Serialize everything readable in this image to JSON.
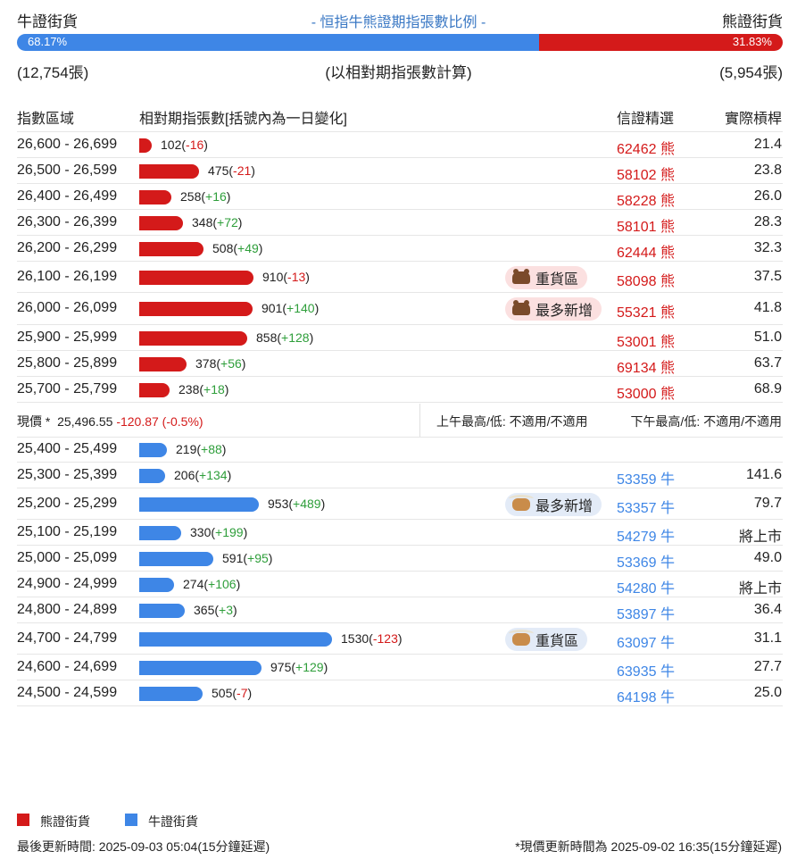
{
  "header": {
    "bull_label": "牛證街貨",
    "bear_label": "熊證街貨",
    "title": "- 恒指牛熊證期指張數比例 -",
    "bull_pct": "68.17%",
    "bear_pct": "31.83%",
    "bull_pct_value": 68.17,
    "bear_pct_value": 31.83,
    "bull_count": "(12,754張)",
    "bear_count": "(5,954張)",
    "basis": "(以相對期指張數計算)"
  },
  "columns": {
    "range": "指數區域",
    "contracts": "相對期指張數[括號內為一日變化]",
    "warrant": "信證精選",
    "leverage": "實際槓桿"
  },
  "colors": {
    "bear": "#d41a1a",
    "bull": "#3e86e6",
    "positive": "#2e9e3a"
  },
  "chart_data": {
    "type": "bar",
    "bear_rows": [
      {
        "range": "26,600 - 26,699",
        "value": 102,
        "value_text": "102",
        "change": "-16",
        "warrant": "62462 熊",
        "leverage": "21.4",
        "badge": ""
      },
      {
        "range": "26,500 - 26,599",
        "value": 475,
        "value_text": "475",
        "change": "-21",
        "warrant": "58102 熊",
        "leverage": "23.8",
        "badge": ""
      },
      {
        "range": "26,400 - 26,499",
        "value": 258,
        "value_text": "258",
        "change": "+16",
        "warrant": "58228 熊",
        "leverage": "26.0",
        "badge": ""
      },
      {
        "range": "26,300 - 26,399",
        "value": 348,
        "value_text": "348",
        "change": "+72",
        "warrant": "58101 熊",
        "leverage": "28.3",
        "badge": ""
      },
      {
        "range": "26,200 - 26,299",
        "value": 508,
        "value_text": "508",
        "change": "+49",
        "warrant": "62444 熊",
        "leverage": "32.3",
        "badge": ""
      },
      {
        "range": "26,100 - 26,199",
        "value": 910,
        "value_text": "910",
        "change": "-13",
        "warrant": "58098 熊",
        "leverage": "37.5",
        "badge": "重貨區"
      },
      {
        "range": "26,000 - 26,099",
        "value": 901,
        "value_text": "901",
        "change": "+140",
        "warrant": "55321 熊",
        "leverage": "41.8",
        "badge": "最多新增"
      },
      {
        "range": "25,900 - 25,999",
        "value": 858,
        "value_text": "858",
        "change": "+128",
        "warrant": "53001 熊",
        "leverage": "51.0",
        "badge": ""
      },
      {
        "range": "25,800 - 25,899",
        "value": 378,
        "value_text": "378",
        "change": "+56",
        "warrant": "69134 熊",
        "leverage": "63.7",
        "badge": ""
      },
      {
        "range": "25,700 - 25,799",
        "value": 238,
        "value_text": "238",
        "change": "+18",
        "warrant": "53000 熊",
        "leverage": "68.9",
        "badge": ""
      }
    ],
    "bull_rows": [
      {
        "range": "25,400 - 25,499",
        "value": 219,
        "value_text": "219",
        "change": "+88",
        "warrant": "",
        "leverage": "",
        "badge": ""
      },
      {
        "range": "25,300 - 25,399",
        "value": 206,
        "value_text": "206",
        "change": "+134",
        "warrant": "53359 牛",
        "leverage": "141.6",
        "badge": ""
      },
      {
        "range": "25,200 - 25,299",
        "value": 953,
        "value_text": "953",
        "change": "+489",
        "warrant": "53357 牛",
        "leverage": "79.7",
        "badge": "最多新增"
      },
      {
        "range": "25,100 - 25,199",
        "value": 330,
        "value_text": "330",
        "change": "+199",
        "warrant": "54279 牛",
        "leverage": "將上市",
        "badge": ""
      },
      {
        "range": "25,000 - 25,099",
        "value": 591,
        "value_text": "591",
        "change": "+95",
        "warrant": "53369 牛",
        "leverage": "49.0",
        "badge": ""
      },
      {
        "range": "24,900 - 24,999",
        "value": 274,
        "value_text": "274",
        "change": "+106",
        "warrant": "54280 牛",
        "leverage": "將上市",
        "badge": ""
      },
      {
        "range": "24,800 - 24,899",
        "value": 365,
        "value_text": "365",
        "change": "+3",
        "warrant": "53897 牛",
        "leverage": "36.4",
        "badge": ""
      },
      {
        "range": "24,700 - 24,799",
        "value": 1530,
        "value_text": "1530",
        "change": "-123",
        "warrant": "63097 牛",
        "leverage": "31.1",
        "badge": "重貨區"
      },
      {
        "range": "24,600 - 24,699",
        "value": 975,
        "value_text": "975",
        "change": "+129",
        "warrant": "63935 牛",
        "leverage": "27.7",
        "badge": ""
      },
      {
        "range": "24,500 - 24,599",
        "value": 505,
        "value_text": "505",
        "change": "-7",
        "warrant": "64198 牛",
        "leverage": "25.0",
        "badge": ""
      }
    ],
    "legend": [
      "熊證街貨",
      "牛證街貨"
    ]
  },
  "spot": {
    "label": "現價 *",
    "price": "25,496.55",
    "change": "-120.87 (-0.5%)",
    "am_hilo": "上午最高/低: 不適用/不適用",
    "pm_hilo": "下午最高/低: 不適用/不適用"
  },
  "footer": {
    "legend_bear": "熊證街貨",
    "legend_bull": "牛證街貨",
    "updated": "最後更新時間: 2025-09-03 05:04(15分鐘延遲)",
    "spot_updated": "*現價更新時間為 2025-09-02 16:35(15分鐘延遲)"
  }
}
